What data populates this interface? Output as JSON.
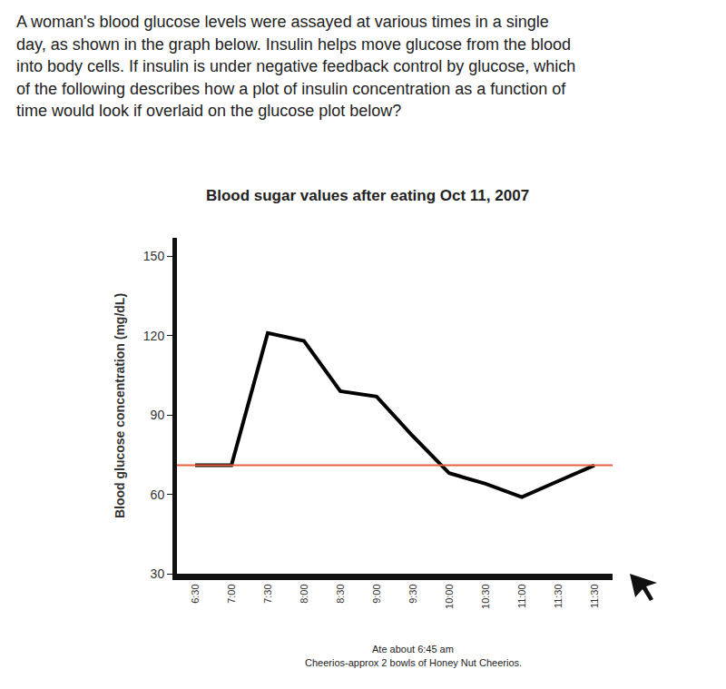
{
  "question": {
    "lines": [
      "A woman's blood glucose levels were assayed at various times in a single",
      "day, as shown in the graph below. Insulin helps move glucose from the blood",
      "into body cells. If insulin is under negative feedback control by glucose, which",
      "of the following describes how a plot of insulin concentration as a function of",
      "time would look if overlaid on the glucose plot below?"
    ]
  },
  "chart_data": {
    "type": "line",
    "title": "Blood sugar values after eating Oct 11, 2007",
    "y_label": "Blood glucose concentration (mg/dL)",
    "categories": [
      "6:30",
      "7:00",
      "7:30",
      "8:00",
      "8:30",
      "9:00",
      "9:30",
      "10:00",
      "10:30",
      "11:00",
      "11:30",
      "11:30"
    ],
    "values": [
      71,
      71,
      121,
      118,
      99,
      97,
      82,
      68,
      64,
      59,
      65,
      71
    ],
    "color": "#000000",
    "ylim": [
      30,
      157
    ],
    "yticks": [
      30,
      60,
      90,
      120,
      150
    ],
    "grid": false,
    "target_line": {
      "value": 71,
      "color": "#e8603c"
    },
    "notes": [
      "Ate about 6:45 am",
      "Cheerios-approx 2 bowls of Honey Nut Cheerios."
    ]
  }
}
